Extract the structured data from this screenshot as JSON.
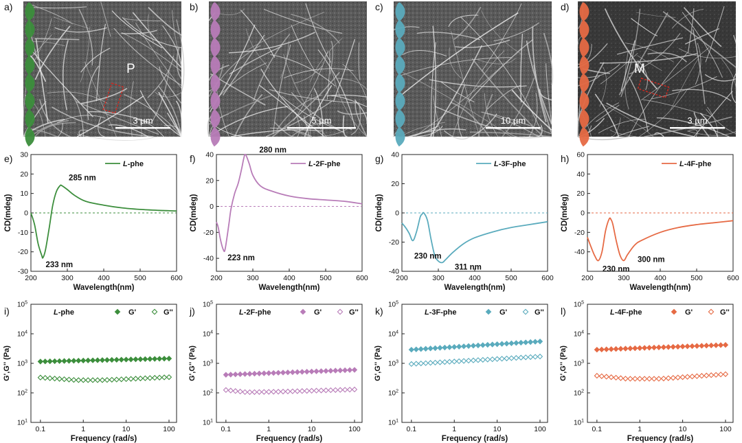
{
  "colors": {
    "green": "#3c8e3c",
    "purple": "#b87cb8",
    "teal": "#5aabbd",
    "orange": "#e66a44",
    "scale_red": "#cc2a22"
  },
  "panel_letters": [
    "a)",
    "b)",
    "c)",
    "d)",
    "e)",
    "f)",
    "g)",
    "h)",
    "i)",
    "j)",
    "k)",
    "l)"
  ],
  "micrographs": [
    {
      "scale_label": "3 µm",
      "annotation": "P",
      "ribbon_color": "#3c8e3c"
    },
    {
      "scale_label": "5 µm",
      "annotation": "",
      "ribbon_color": "#b87cb8"
    },
    {
      "scale_label": "10 µm",
      "annotation": "",
      "ribbon_color": "#5aabbd"
    },
    {
      "scale_label": "3 µm",
      "annotation": "M",
      "ribbon_color": "#e66a44"
    }
  ],
  "chart_data": [
    {
      "type": "line",
      "panel": "e",
      "ylabel": "CD(mdeg)",
      "xlabel": "Wavelength(nm)",
      "xlim": [
        200,
        600
      ],
      "ylim": [
        -30,
        30
      ],
      "yticks": [
        -30,
        -20,
        -10,
        0,
        10,
        20,
        30
      ],
      "xticks": [
        200,
        300,
        400,
        500,
        600
      ],
      "series": [
        {
          "name": "L-phe",
          "color": "#3c8e3c",
          "x": [
            200,
            210,
            220,
            230,
            233,
            240,
            250,
            260,
            270,
            280,
            285,
            300,
            320,
            350,
            400,
            450,
            500,
            550,
            600
          ],
          "y": [
            0,
            -6,
            -16,
            -22,
            -23,
            -19,
            -8,
            4,
            11,
            14,
            14,
            12,
            9,
            6,
            4,
            2.6,
            1.8,
            1.3,
            1.0
          ]
        }
      ],
      "legend": {
        "italic": "L",
        "rest": "-phe"
      },
      "annotations": [
        {
          "text": "285 nm",
          "x": 285,
          "y": 14
        },
        {
          "text": "233 nm",
          "x": 233,
          "y": -23
        }
      ]
    },
    {
      "type": "line",
      "panel": "f",
      "ylabel": "CD(mdeg)",
      "xlabel": "Wavelength(nm)",
      "xlim": [
        200,
        600
      ],
      "ylim": [
        -50,
        40
      ],
      "yticks": [
        -40,
        -20,
        0,
        20,
        40
      ],
      "xticks": [
        200,
        300,
        400,
        500,
        600
      ],
      "series": [
        {
          "name": "L-2F-phe",
          "color": "#b87cb8",
          "x": [
            200,
            205,
            210,
            215,
            220,
            223,
            228,
            235,
            240,
            250,
            260,
            270,
            275,
            280,
            290,
            300,
            320,
            350,
            400,
            450,
            500,
            550,
            600
          ],
          "y": [
            -12,
            -16,
            -24,
            -30,
            -34,
            -34,
            -26,
            -12,
            -2,
            10,
            18,
            30,
            37,
            40,
            33,
            24,
            16,
            12,
            8,
            6,
            5,
            4,
            2
          ]
        }
      ],
      "legend": {
        "italic": "L",
        "rest": "-2F-phe"
      },
      "annotations": [
        {
          "text": "280 nm",
          "x": 280,
          "y": 40
        },
        {
          "text": "223 nm",
          "x": 223,
          "y": -34
        }
      ]
    },
    {
      "type": "line",
      "panel": "g",
      "ylabel": "CD(mdeg)",
      "xlabel": "Wavelength(nm)",
      "xlim": [
        200,
        600
      ],
      "ylim": [
        -40,
        40
      ],
      "yticks": [
        -40,
        -20,
        0,
        20,
        40
      ],
      "xticks": [
        200,
        300,
        400,
        500,
        600
      ],
      "series": [
        {
          "name": "L-3F-phe",
          "color": "#5aabbd",
          "x": [
            200,
            210,
            220,
            230,
            240,
            250,
            255,
            260,
            270,
            280,
            290,
            300,
            311,
            320,
            340,
            370,
            400,
            450,
            500,
            550,
            600
          ],
          "y": [
            -7,
            -10,
            -14,
            -19,
            -13,
            -3,
            -1,
            0,
            -5,
            -18,
            -29,
            -33,
            -34,
            -32,
            -27,
            -21,
            -17,
            -13,
            -10,
            -8,
            -6
          ]
        }
      ],
      "legend": {
        "italic": "L",
        "rest": "-3F-phe"
      },
      "annotations": [
        {
          "text": "230 nm",
          "x": 230,
          "y": -20
        },
        {
          "text": "311 nm",
          "x": 311,
          "y": -34
        }
      ]
    },
    {
      "type": "line",
      "panel": "h",
      "ylabel": "CD(mdeg)",
      "xlabel": "Wavelength(nm)",
      "xlim": [
        200,
        600
      ],
      "ylim": [
        -60,
        60
      ],
      "yticks": [
        -40,
        -20,
        0,
        20,
        40,
        60
      ],
      "xticks": [
        200,
        300,
        400,
        500,
        600
      ],
      "series": [
        {
          "name": "L-4F-phe",
          "color": "#e66a44",
          "x": [
            200,
            210,
            220,
            230,
            240,
            250,
            260,
            265,
            270,
            280,
            290,
            300,
            310,
            330,
            350,
            400,
            450,
            500,
            550,
            600
          ],
          "y": [
            -25,
            -35,
            -44,
            -49,
            -40,
            -18,
            -6,
            -7,
            -12,
            -30,
            -44,
            -49,
            -43,
            -33,
            -28,
            -20,
            -15,
            -12,
            -10,
            -8
          ]
        }
      ],
      "legend": {
        "italic": "L",
        "rest": "-4F-phe"
      },
      "annotations": [
        {
          "text": "230 nm",
          "x": 230,
          "y": -49
        },
        {
          "text": "300 nm",
          "x": 300,
          "y": -49
        }
      ]
    },
    {
      "type": "scatter",
      "panel": "i",
      "ylabel": "G',G'' (Pa)",
      "xlabel": "Frequency (rad/s)",
      "x_scale": "log",
      "y_scale": "log",
      "xlim": [
        0.06,
        150
      ],
      "ylim": [
        10,
        100000
      ],
      "xticks": [
        "0.1",
        "1",
        "10",
        "100"
      ],
      "legend": {
        "italic": "L",
        "rest": "-phe",
        "g1": "G'",
        "g2": "G''"
      },
      "series": [
        {
          "name": "G'",
          "color": "#3c8e3c",
          "marker": "filled-diamond",
          "x": [
            0.1,
            100
          ],
          "y": [
            1150,
            1450
          ]
        },
        {
          "name": "G''",
          "color": "#3c8e3c",
          "marker": "open-diamond",
          "x": [
            0.1,
            0.7,
            3,
            100
          ],
          "y": [
            330,
            270,
            270,
            340
          ]
        }
      ]
    },
    {
      "type": "scatter",
      "panel": "j",
      "ylabel": "G',G'' (Pa)",
      "xlabel": "Frequency (rad/s)",
      "x_scale": "log",
      "y_scale": "log",
      "xlim": [
        0.06,
        150
      ],
      "ylim": [
        10,
        100000
      ],
      "xticks": [
        "0.1",
        "1",
        "10",
        "100"
      ],
      "legend": {
        "italic": "L",
        "rest": "-2F-phe",
        "g1": "G'",
        "g2": "G''"
      },
      "series": [
        {
          "name": "G'",
          "color": "#b87cb8",
          "marker": "filled-diamond",
          "x": [
            0.1,
            100
          ],
          "y": [
            410,
            600
          ]
        },
        {
          "name": "G''",
          "color": "#b87cb8",
          "marker": "open-diamond",
          "x": [
            0.1,
            0.3,
            2,
            100
          ],
          "y": [
            125,
            105,
            110,
            130
          ]
        }
      ]
    },
    {
      "type": "scatter",
      "panel": "k",
      "ylabel": "G',G'' (Pa)",
      "xlabel": "Frequency (rad/s)",
      "x_scale": "log",
      "y_scale": "log",
      "xlim": [
        0.06,
        150
      ],
      "ylim": [
        10,
        100000
      ],
      "xticks": [
        "0.1",
        "1",
        "10",
        "100"
      ],
      "legend": {
        "italic": "L",
        "rest": "-3F-phe",
        "g1": "G'",
        "g2": "G''"
      },
      "series": [
        {
          "name": "G'",
          "color": "#5aabbd",
          "marker": "filled-diamond",
          "x": [
            0.1,
            100
          ],
          "y": [
            2900,
            5500
          ]
        },
        {
          "name": "G''",
          "color": "#5aabbd",
          "marker": "open-diamond",
          "x": [
            0.1,
            100
          ],
          "y": [
            950,
            1700
          ]
        }
      ]
    },
    {
      "type": "scatter",
      "panel": "l",
      "ylabel": "G',G'' (Pa)",
      "xlabel": "Frequency (rad/s)",
      "x_scale": "log",
      "y_scale": "log",
      "xlim": [
        0.06,
        150
      ],
      "ylim": [
        10,
        100000
      ],
      "xticks": [
        "0.1",
        "1",
        "10",
        "100"
      ],
      "legend": {
        "italic": "L",
        "rest": "-4F-phe",
        "g1": "G'",
        "g2": "G''"
      },
      "series": [
        {
          "name": "G'",
          "color": "#e66a44",
          "marker": "filled-diamond",
          "x": [
            0.1,
            100
          ],
          "y": [
            2900,
            4200
          ]
        },
        {
          "name": "G''",
          "color": "#e66a44",
          "marker": "open-diamond",
          "x": [
            0.1,
            0.5,
            3,
            100
          ],
          "y": [
            380,
            300,
            300,
            430
          ]
        }
      ]
    }
  ]
}
